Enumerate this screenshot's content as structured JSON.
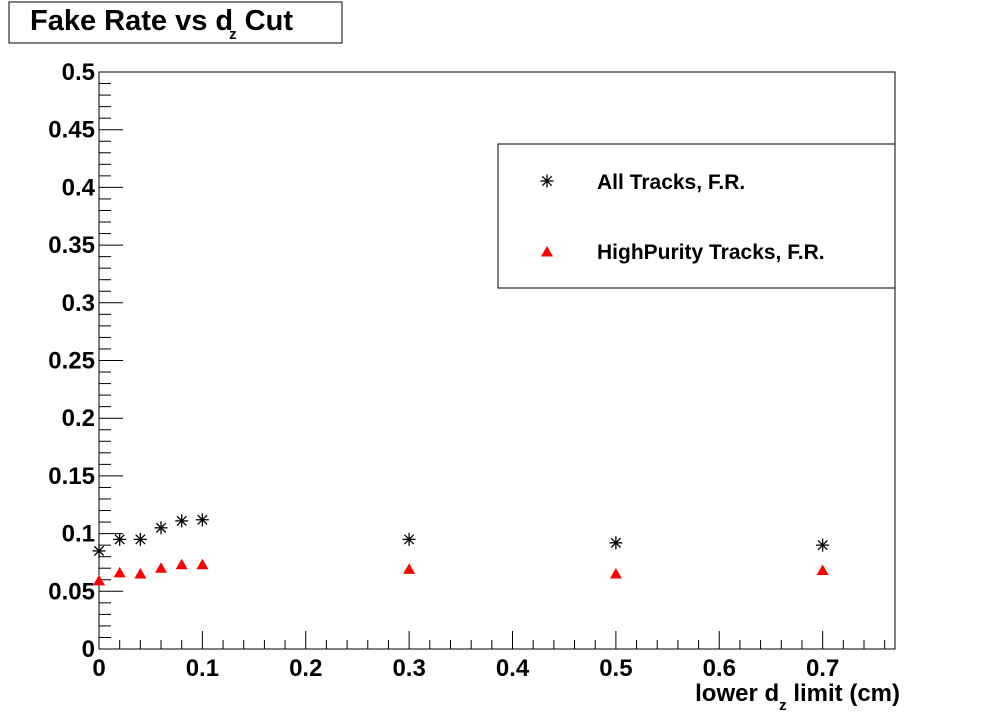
{
  "chart_data": {
    "type": "scatter",
    "title": {
      "main": "Fake Rate vs d",
      "sub": "z",
      "tail": " Cut"
    },
    "xlabel": {
      "main": "lower d",
      "sub": "z",
      "tail": " limit (cm)"
    },
    "ylabel": "",
    "xlim": [
      0,
      0.77
    ],
    "ylim": [
      0,
      0.5
    ],
    "xticks": [
      "0",
      "0.1",
      "0.2",
      "0.3",
      "0.4",
      "0.5",
      "0.6",
      "0.7"
    ],
    "xtick_values": [
      0,
      0.1,
      0.2,
      0.3,
      0.4,
      0.5,
      0.6,
      0.7
    ],
    "yticks": [
      "0",
      "0.05",
      "0.1",
      "0.15",
      "0.2",
      "0.25",
      "0.3",
      "0.35",
      "0.4",
      "0.45",
      "0.5"
    ],
    "ytick_values": [
      0,
      0.05,
      0.1,
      0.15,
      0.2,
      0.25,
      0.3,
      0.35,
      0.4,
      0.45,
      0.5
    ],
    "grid": false,
    "legend_position": "top-right",
    "series": [
      {
        "name": "All Tracks, F.R.",
        "marker": "star",
        "color": "#000000",
        "x": [
          0,
          0.02,
          0.04,
          0.06,
          0.08,
          0.1,
          0.3,
          0.5,
          0.7
        ],
        "y": [
          0.085,
          0.095,
          0.095,
          0.105,
          0.111,
          0.112,
          0.095,
          0.092,
          0.09
        ]
      },
      {
        "name": "HighPurity Tracks, F.R.",
        "marker": "triangle",
        "color": "#ff0000",
        "x": [
          0,
          0.02,
          0.04,
          0.06,
          0.08,
          0.1,
          0.3,
          0.5,
          0.7
        ],
        "y": [
          0.059,
          0.066,
          0.065,
          0.07,
          0.073,
          0.073,
          0.069,
          0.065,
          0.068
        ]
      }
    ]
  }
}
